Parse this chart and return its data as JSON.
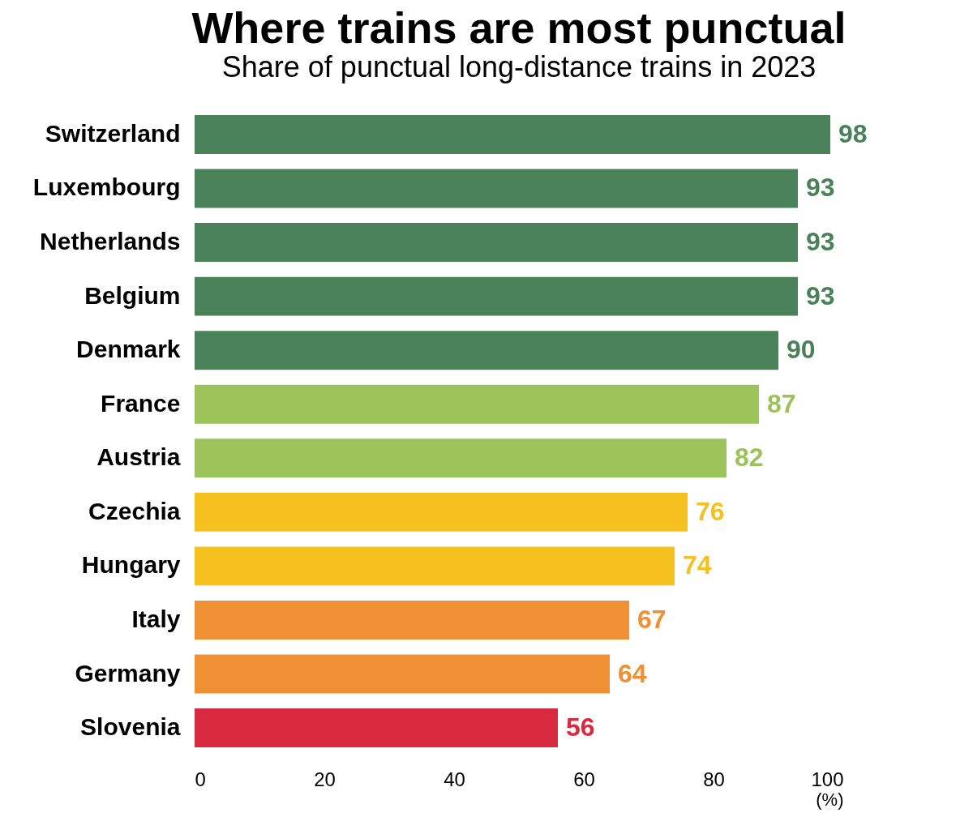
{
  "chart_data": {
    "type": "bar",
    "orientation": "horizontal",
    "title": "Where trains are most punctual",
    "subtitle": "Share of punctual long-distance trains in 2023",
    "xlabel": "(%)",
    "categories": [
      "Switzerland",
      "Luxembourg",
      "Netherlands",
      "Belgium",
      "Denmark",
      "France",
      "Austria",
      "Czechia",
      "Hungary",
      "Italy",
      "Germany",
      "Slovenia"
    ],
    "values": [
      98,
      93,
      93,
      93,
      90,
      87,
      82,
      76,
      74,
      67,
      64,
      56
    ],
    "colors": [
      "#4a8158",
      "#4a8158",
      "#4a8158",
      "#4a8158",
      "#4a8158",
      "#9bc35a",
      "#9bc35a",
      "#f6c01e",
      "#f6c01e",
      "#ef9035",
      "#ef9035",
      "#d8293f"
    ],
    "xlim": [
      0,
      100
    ],
    "xticks": [
      0,
      20,
      40,
      60,
      80,
      100
    ],
    "data_labels": true,
    "grid": false
  }
}
